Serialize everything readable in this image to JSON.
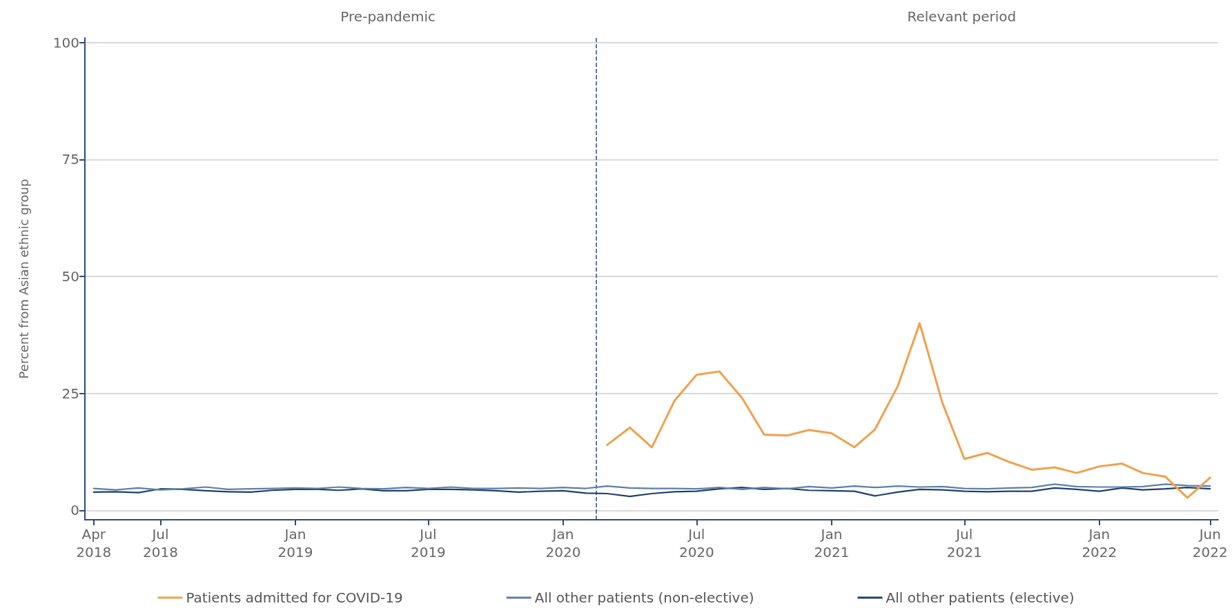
{
  "chart_data": {
    "type": "line",
    "ylabel": "Percent from Asian ethnic group",
    "annotations": [
      "Pre-pandemic",
      "Relevant period"
    ],
    "x": [
      "2018-04",
      "2018-05",
      "2018-06",
      "2018-07",
      "2018-08",
      "2018-09",
      "2018-10",
      "2018-11",
      "2018-12",
      "2019-01",
      "2019-02",
      "2019-03",
      "2019-04",
      "2019-05",
      "2019-06",
      "2019-07",
      "2019-08",
      "2019-09",
      "2019-10",
      "2019-11",
      "2019-12",
      "2020-01",
      "2020-02",
      "2020-03",
      "2020-04",
      "2020-05",
      "2020-06",
      "2020-07",
      "2020-08",
      "2020-09",
      "2020-10",
      "2020-11",
      "2020-12",
      "2021-01",
      "2021-02",
      "2021-03",
      "2021-04",
      "2021-05",
      "2021-06",
      "2021-07",
      "2021-08",
      "2021-09",
      "2021-10",
      "2021-11",
      "2021-12",
      "2022-01",
      "2022-02",
      "2022-03",
      "2022-04",
      "2022-05",
      "2022-06"
    ],
    "series": [
      {
        "name": "Patients admitted for COVID-19",
        "color": "#f0a04b",
        "x": [
          "2020-03",
          "2020-04",
          "2020-05",
          "2020-06",
          "2020-07",
          "2020-08",
          "2020-09",
          "2020-10",
          "2020-11",
          "2020-12",
          "2021-01",
          "2021-02",
          "2021-03",
          "2021-04",
          "2021-05",
          "2021-06",
          "2021-07",
          "2021-08",
          "2021-09",
          "2021-10",
          "2021-11",
          "2021-12",
          "2022-01",
          "2022-02",
          "2022-03",
          "2022-04",
          "2022-05",
          "2022-06"
        ],
        "values": [
          14,
          17.7,
          13.5,
          23.5,
          29,
          29.7,
          24,
          16.2,
          16,
          17.2,
          16.5,
          13.5,
          17.3,
          26.5,
          40,
          23,
          11,
          12.3,
          10.3,
          8.7,
          9.2,
          8,
          9.4,
          10,
          8,
          7.2,
          2.7,
          7
        ]
      },
      {
        "name": "All other patients (non-elective)",
        "color": "#5b7fa6",
        "values": [
          4.7,
          4.4,
          4.8,
          4.4,
          4.6,
          5.0,
          4.5,
          4.6,
          4.7,
          4.8,
          4.7,
          5.0,
          4.7,
          4.6,
          4.9,
          4.7,
          5.0,
          4.7,
          4.7,
          4.8,
          4.7,
          4.9,
          4.7,
          5.2,
          4.8,
          4.7,
          4.7,
          4.6,
          4.9,
          4.5,
          4.9,
          4.6,
          5.1,
          4.8,
          5.2,
          4.9,
          5.2,
          5.0,
          5.1,
          4.7,
          4.6,
          4.8,
          4.9,
          5.6,
          5.1,
          5.0,
          5.0,
          5.1,
          5.6,
          5.3,
          5.2
        ]
      },
      {
        "name": "All other patients (elective)",
        "color": "#1d3f6e",
        "values": [
          3.9,
          4.0,
          3.8,
          4.6,
          4.5,
          4.2,
          4.0,
          3.9,
          4.3,
          4.5,
          4.5,
          4.3,
          4.6,
          4.2,
          4.2,
          4.5,
          4.5,
          4.4,
          4.2,
          3.9,
          4.1,
          4.2,
          3.7,
          3.6,
          3.0,
          3.6,
          4.0,
          4.1,
          4.6,
          4.9,
          4.5,
          4.7,
          4.3,
          4.2,
          4.1,
          3.1,
          3.9,
          4.5,
          4.4,
          4.1,
          4.0,
          4.1,
          4.1,
          4.8,
          4.5,
          4.1,
          4.8,
          4.4,
          4.6,
          4.9,
          4.6
        ]
      }
    ],
    "xlim": [
      "2018-03-20",
      "2022-06-12"
    ],
    "xticks": [
      {
        "value": "2018-04",
        "label": "Apr\n2018"
      },
      {
        "value": "2018-07",
        "label": "Jul\n2018"
      },
      {
        "value": "2019-01",
        "label": "Jan\n2019"
      },
      {
        "value": "2019-07",
        "label": "Jul\n2019"
      },
      {
        "value": "2020-01",
        "label": "Jan\n2020"
      },
      {
        "value": "2020-07",
        "label": "Jul\n2020"
      },
      {
        "value": "2021-01",
        "label": "Jan\n2021"
      },
      {
        "value": "2021-07",
        "label": "Jul\n2021"
      },
      {
        "value": "2022-01",
        "label": "Jan\n2022"
      },
      {
        "value": "2022-06",
        "label": "Jun\n2022"
      }
    ],
    "ylim": [
      -2,
      101
    ],
    "yticks": [
      0,
      25,
      50,
      75,
      100
    ],
    "ref_lines": [
      {
        "axis": "x",
        "value": "2020-02-15",
        "color": "#2b4a78",
        "line_style": "dashed"
      }
    ],
    "grid": "y",
    "legend": "bottom",
    "marker": "none",
    "line_style": "solid"
  }
}
